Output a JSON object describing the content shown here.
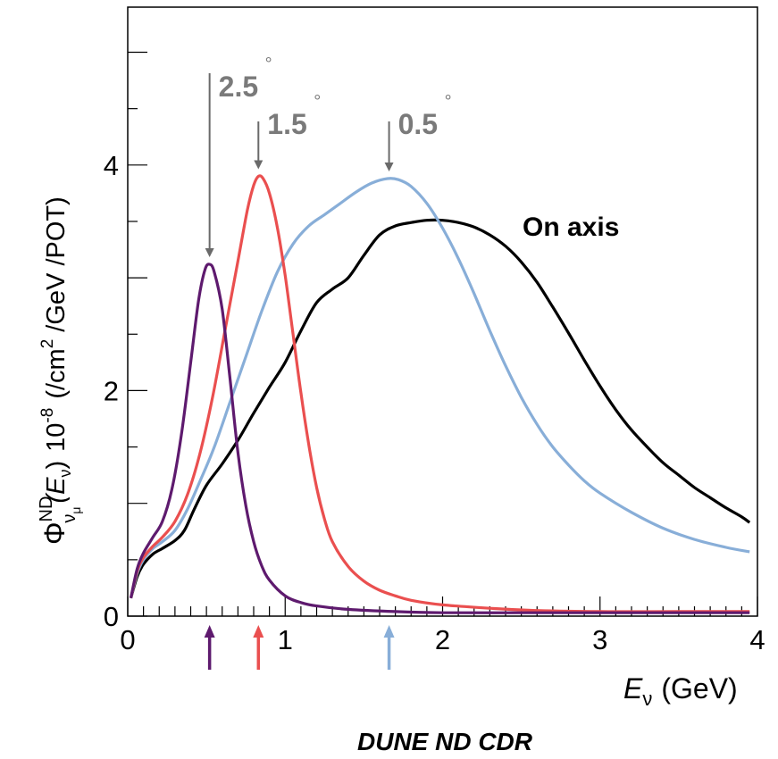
{
  "chart_data": {
    "type": "line",
    "xlabel_var": "E",
    "xlabel_sub": "ν",
    "xlabel_unit": "(GeV)",
    "ylabel_main": "Φ",
    "ylabel_sup": "ND",
    "ylabel_sub": "ν",
    "ylabel_subsub": "μ",
    "ylabel_arg": "(E",
    "ylabel_arg_sub": "ν",
    "ylabel_arg_close": ")",
    "ylabel_scale": "10",
    "ylabel_scale_exp": "-8",
    "ylabel_unit_a": "(/cm",
    "ylabel_unit_exp": "2",
    "ylabel_unit_b": "/GeV /POT)",
    "subtitle": "DUNE ND CDR",
    "xlim": [
      0,
      4
    ],
    "ylim": [
      0,
      5.4
    ],
    "x_ticks": [
      0,
      1,
      2,
      3,
      4
    ],
    "x_tick_labels": [
      "0",
      "1",
      "2",
      "3",
      "4"
    ],
    "y_ticks": [
      0,
      2,
      4
    ],
    "y_tick_labels": [
      "0",
      "2",
      "4"
    ],
    "grid": false,
    "series": [
      {
        "name": "On axis",
        "color": "#000000",
        "points": [
          [
            0.02,
            0.16
          ],
          [
            0.06,
            0.35
          ],
          [
            0.1,
            0.46
          ],
          [
            0.16,
            0.55
          ],
          [
            0.22,
            0.6
          ],
          [
            0.3,
            0.67
          ],
          [
            0.36,
            0.76
          ],
          [
            0.42,
            0.94
          ],
          [
            0.5,
            1.16
          ],
          [
            0.6,
            1.35
          ],
          [
            0.7,
            1.56
          ],
          [
            0.8,
            1.8
          ],
          [
            0.9,
            2.03
          ],
          [
            1.0,
            2.25
          ],
          [
            1.1,
            2.53
          ],
          [
            1.2,
            2.78
          ],
          [
            1.3,
            2.9
          ],
          [
            1.4,
            3.0
          ],
          [
            1.5,
            3.2
          ],
          [
            1.6,
            3.38
          ],
          [
            1.7,
            3.46
          ],
          [
            1.8,
            3.49
          ],
          [
            1.9,
            3.51
          ],
          [
            2.0,
            3.51
          ],
          [
            2.1,
            3.49
          ],
          [
            2.2,
            3.45
          ],
          [
            2.3,
            3.38
          ],
          [
            2.4,
            3.28
          ],
          [
            2.5,
            3.14
          ],
          [
            2.6,
            2.96
          ],
          [
            2.7,
            2.74
          ],
          [
            2.8,
            2.51
          ],
          [
            2.9,
            2.27
          ],
          [
            3.0,
            2.04
          ],
          [
            3.1,
            1.83
          ],
          [
            3.2,
            1.65
          ],
          [
            3.3,
            1.5
          ],
          [
            3.4,
            1.36
          ],
          [
            3.5,
            1.25
          ],
          [
            3.6,
            1.14
          ],
          [
            3.7,
            1.05
          ],
          [
            3.8,
            0.96
          ],
          [
            3.9,
            0.88
          ],
          [
            3.95,
            0.83
          ]
        ]
      },
      {
        "name": "0.5°",
        "color": "#88aed8",
        "points": [
          [
            0.02,
            0.16
          ],
          [
            0.06,
            0.38
          ],
          [
            0.1,
            0.5
          ],
          [
            0.16,
            0.6
          ],
          [
            0.22,
            0.66
          ],
          [
            0.3,
            0.76
          ],
          [
            0.38,
            0.95
          ],
          [
            0.46,
            1.2
          ],
          [
            0.55,
            1.5
          ],
          [
            0.65,
            1.9
          ],
          [
            0.75,
            2.3
          ],
          [
            0.85,
            2.7
          ],
          [
            0.95,
            3.05
          ],
          [
            1.05,
            3.3
          ],
          [
            1.15,
            3.46
          ],
          [
            1.25,
            3.56
          ],
          [
            1.35,
            3.66
          ],
          [
            1.45,
            3.76
          ],
          [
            1.55,
            3.84
          ],
          [
            1.65,
            3.88
          ],
          [
            1.72,
            3.87
          ],
          [
            1.8,
            3.81
          ],
          [
            1.9,
            3.66
          ],
          [
            2.0,
            3.44
          ],
          [
            2.1,
            3.17
          ],
          [
            2.2,
            2.86
          ],
          [
            2.3,
            2.53
          ],
          [
            2.4,
            2.22
          ],
          [
            2.5,
            1.94
          ],
          [
            2.6,
            1.7
          ],
          [
            2.7,
            1.5
          ],
          [
            2.8,
            1.34
          ],
          [
            2.9,
            1.2
          ],
          [
            3.0,
            1.09
          ],
          [
            3.2,
            0.92
          ],
          [
            3.4,
            0.78
          ],
          [
            3.6,
            0.68
          ],
          [
            3.8,
            0.61
          ],
          [
            3.95,
            0.57
          ]
        ]
      },
      {
        "name": "1.5°",
        "color": "#ea4f4f",
        "points": [
          [
            0.02,
            0.16
          ],
          [
            0.06,
            0.4
          ],
          [
            0.1,
            0.52
          ],
          [
            0.16,
            0.62
          ],
          [
            0.22,
            0.7
          ],
          [
            0.3,
            0.84
          ],
          [
            0.38,
            1.08
          ],
          [
            0.46,
            1.45
          ],
          [
            0.54,
            1.95
          ],
          [
            0.62,
            2.55
          ],
          [
            0.7,
            3.15
          ],
          [
            0.76,
            3.6
          ],
          [
            0.8,
            3.82
          ],
          [
            0.83,
            3.9
          ],
          [
            0.86,
            3.88
          ],
          [
            0.9,
            3.75
          ],
          [
            0.95,
            3.45
          ],
          [
            1.0,
            3.02
          ],
          [
            1.05,
            2.5
          ],
          [
            1.1,
            1.98
          ],
          [
            1.15,
            1.52
          ],
          [
            1.2,
            1.14
          ],
          [
            1.25,
            0.86
          ],
          [
            1.3,
            0.66
          ],
          [
            1.4,
            0.44
          ],
          [
            1.5,
            0.31
          ],
          [
            1.6,
            0.23
          ],
          [
            1.7,
            0.18
          ],
          [
            1.8,
            0.14
          ],
          [
            2.0,
            0.1
          ],
          [
            2.3,
            0.07
          ],
          [
            2.6,
            0.05
          ],
          [
            3.0,
            0.04
          ],
          [
            3.5,
            0.04
          ],
          [
            3.95,
            0.04
          ]
        ]
      },
      {
        "name": "2.5°",
        "color": "#5e1a6e",
        "points": [
          [
            0.02,
            0.16
          ],
          [
            0.06,
            0.42
          ],
          [
            0.1,
            0.56
          ],
          [
            0.16,
            0.7
          ],
          [
            0.22,
            0.84
          ],
          [
            0.28,
            1.12
          ],
          [
            0.34,
            1.6
          ],
          [
            0.4,
            2.25
          ],
          [
            0.45,
            2.8
          ],
          [
            0.49,
            3.07
          ],
          [
            0.52,
            3.12
          ],
          [
            0.55,
            3.05
          ],
          [
            0.6,
            2.72
          ],
          [
            0.65,
            2.1
          ],
          [
            0.7,
            1.45
          ],
          [
            0.75,
            0.98
          ],
          [
            0.8,
            0.66
          ],
          [
            0.85,
            0.45
          ],
          [
            0.9,
            0.32
          ],
          [
            1.0,
            0.18
          ],
          [
            1.1,
            0.12
          ],
          [
            1.2,
            0.09
          ],
          [
            1.4,
            0.06
          ],
          [
            1.7,
            0.04
          ],
          [
            2.0,
            0.03
          ],
          [
            2.5,
            0.03
          ],
          [
            3.0,
            0.03
          ],
          [
            3.5,
            0.03
          ],
          [
            3.95,
            0.03
          ]
        ]
      }
    ],
    "annotations": [
      {
        "text": "2.5",
        "deg": "°",
        "x": 0.52,
        "color": "#5e1a6e"
      },
      {
        "text": "1.5",
        "deg": "°",
        "x": 0.83,
        "color": "#ea4f4f"
      },
      {
        "text": "0.5",
        "deg": "°",
        "x": 1.66,
        "color": "#88aed8"
      }
    ],
    "series_label": "On axis"
  }
}
